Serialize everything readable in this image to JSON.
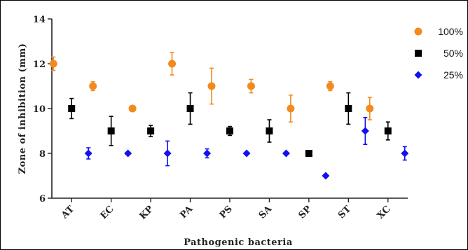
{
  "chart_data": {
    "type": "scatter",
    "xlabel": "Pathogenic bacteria",
    "ylabel": "Zone of inhibition (mm)",
    "categories": [
      "AT",
      "EC",
      "KP",
      "PA",
      "PS",
      "SA",
      "SP",
      "ST",
      "XC"
    ],
    "ylim": [
      6,
      14
    ],
    "yticks": [
      6,
      8,
      10,
      12,
      14
    ],
    "legend_position": "top-right",
    "series": [
      {
        "name": "100%",
        "marker": "circle",
        "color": "#F28A1E",
        "values": [
          12,
          11,
          10,
          12,
          11,
          11,
          10,
          11,
          10
        ],
        "errors": [
          0.3,
          0.2,
          0,
          0.5,
          0.8,
          0.3,
          0.6,
          0.2,
          0.5
        ]
      },
      {
        "name": "50%",
        "marker": "square",
        "color": "#000000",
        "values": [
          10,
          9,
          9,
          10,
          9,
          9,
          8,
          10,
          9
        ],
        "errors": [
          0.45,
          0.65,
          0.25,
          0.7,
          0.2,
          0.5,
          0,
          0.7,
          0.4
        ]
      },
      {
        "name": "25%",
        "marker": "diamond",
        "color": "#1010F0",
        "values": [
          8,
          8,
          8,
          8,
          8,
          8,
          7,
          9,
          8
        ],
        "errors": [
          0.25,
          0,
          0.55,
          0.2,
          0,
          0,
          0,
          0.6,
          0.3
        ]
      }
    ]
  }
}
